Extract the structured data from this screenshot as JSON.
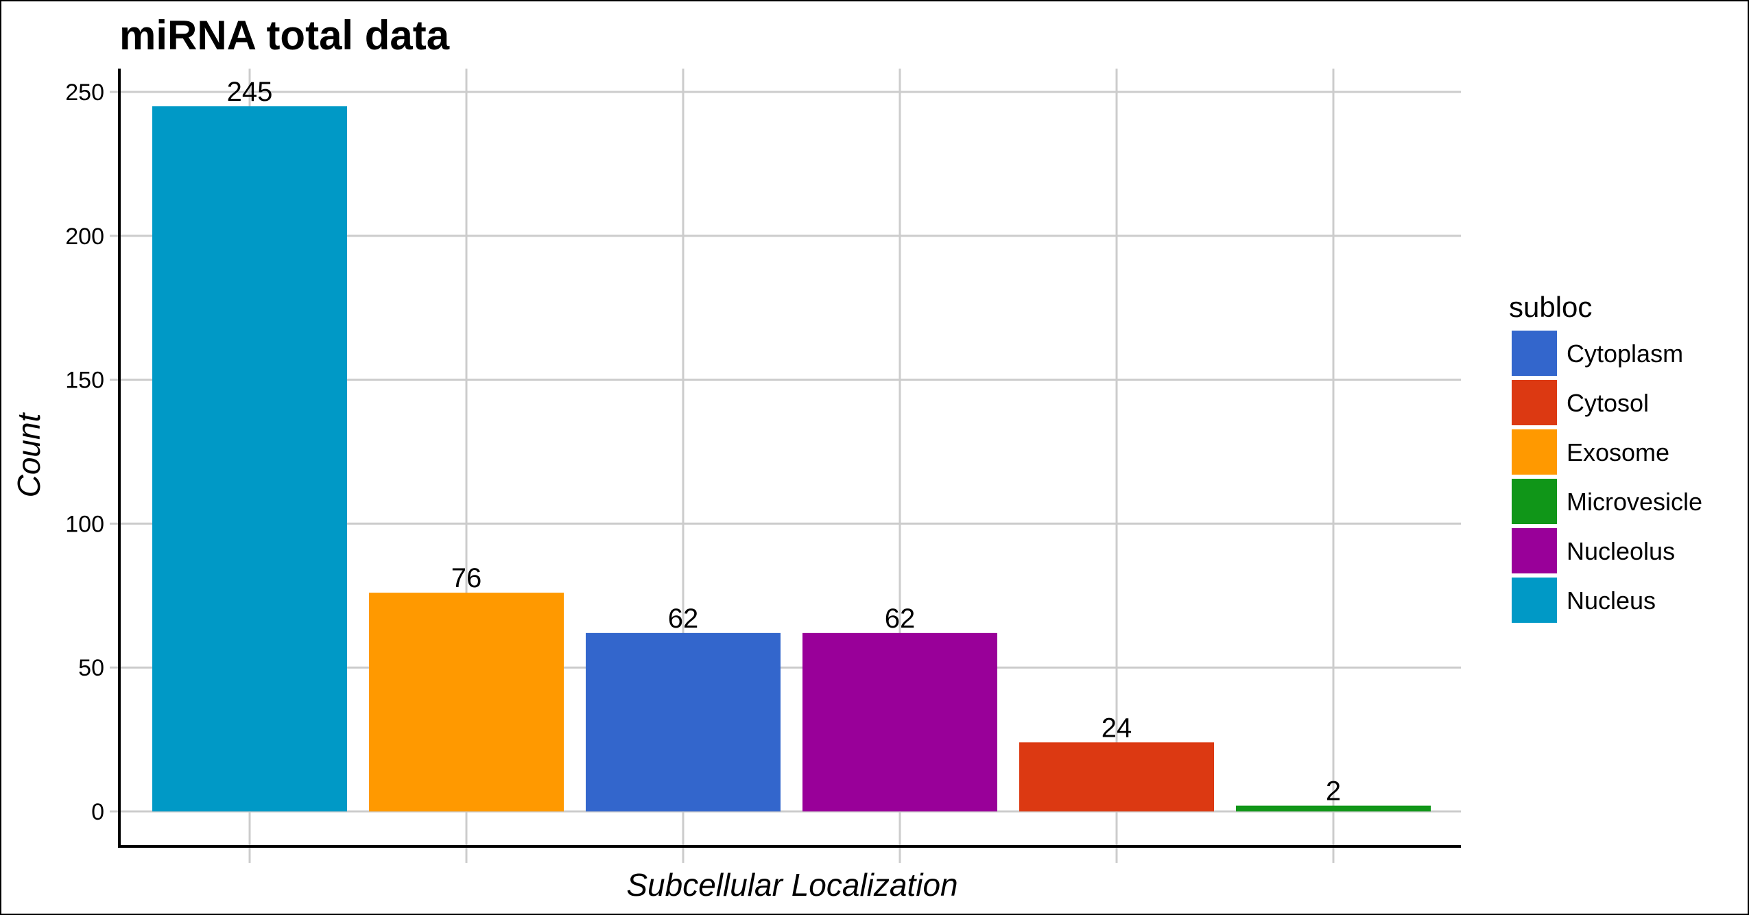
{
  "chart_data": {
    "type": "bar",
    "title": "miRNA total data",
    "xlabel": "Subcellular Localization",
    "ylabel": "Count",
    "ylim": [
      0,
      260
    ],
    "yticks": [
      0,
      50,
      100,
      150,
      200,
      250
    ],
    "grid": true,
    "legend_position": "right",
    "legend_title": "subloc",
    "categories": [
      "Nucleus",
      "Exosome",
      "Cytoplasm",
      "Nucleolus",
      "Cytosol",
      "Microvesicle"
    ],
    "values": [
      245,
      76,
      62,
      62,
      24,
      2
    ],
    "colors": {
      "Cytoplasm": "#3366cc",
      "Cytosol": "#dc3912",
      "Exosome": "#ff9900",
      "Microvesicle": "#109618",
      "Nucleolus": "#990099",
      "Nucleus": "#0099c6"
    },
    "legend_entries": [
      "Cytoplasm",
      "Cytosol",
      "Exosome",
      "Microvesicle",
      "Nucleolus",
      "Nucleus"
    ]
  }
}
